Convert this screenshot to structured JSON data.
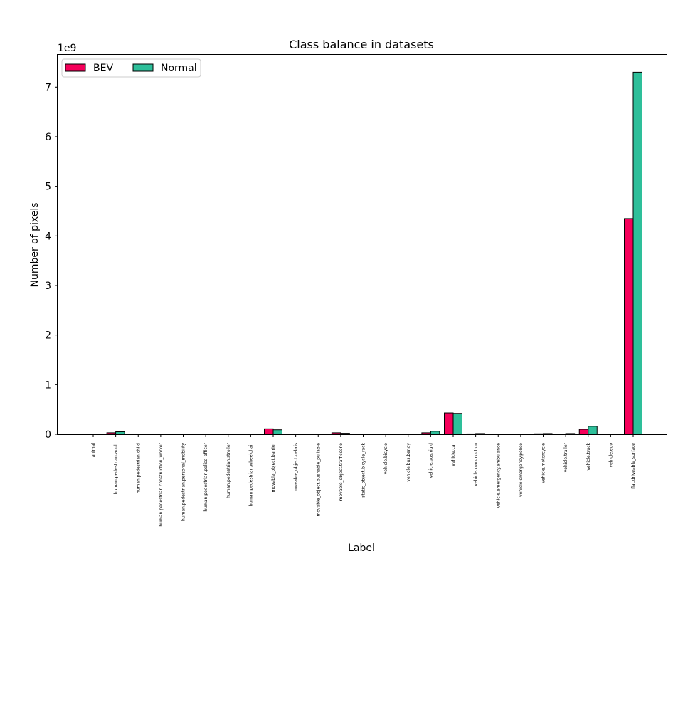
{
  "chart_data": {
    "type": "bar",
    "title": "Class balance in datasets",
    "xlabel": "Label",
    "ylabel": "Number of pixels",
    "y_scale_note": "1e9",
    "ylim": [
      0,
      7.65
    ],
    "yticks": [
      0,
      1,
      2,
      3,
      4,
      5,
      6,
      7
    ],
    "grid": false,
    "legend_position": "top-left",
    "categories": [
      "animal",
      "human.pedestrian.adult",
      "human.pedestrian.child",
      "human.pedestrian.construction_worker",
      "human.pedestrian.personal_mobility",
      "human.pedestrian.police_officer",
      "human.pedestrian.stroller",
      "human.pedestrian.wheelchair",
      "movable_object.barrier",
      "movable_object.debris",
      "movable_object.pushable_pullable",
      "movable_object.trafficcone",
      "static_object.bicycle_rack",
      "vehicle.bicycle",
      "vehicle.bus.bendy",
      "vehicle.bus.rigid",
      "vehicle.car",
      "vehicle.construction",
      "vehicle.emergency.ambulance",
      "vehicle.emergency.police",
      "vehicle.motorcycle",
      "vehicle.trailer",
      "vehicle.truck",
      "vehicle.ego",
      "flat.driveable_surface"
    ],
    "series": [
      {
        "name": "BEV",
        "color": "#f5005a",
        "values": [
          0.001,
          0.03,
          0.001,
          0.002,
          0.001,
          0.0005,
          0.0005,
          0.0005,
          0.11,
          0.003,
          0.005,
          0.03,
          0.002,
          0.004,
          0.003,
          0.03,
          0.43,
          0.008,
          0.0005,
          0.001,
          0.01,
          0.005,
          0.1,
          0.0,
          4.35
        ]
      },
      {
        "name": "Normal",
        "color": "#2ebf9a",
        "values": [
          0.001,
          0.05,
          0.002,
          0.003,
          0.001,
          0.001,
          0.001,
          0.001,
          0.09,
          0.004,
          0.006,
          0.02,
          0.003,
          0.005,
          0.004,
          0.06,
          0.42,
          0.015,
          0.001,
          0.001,
          0.015,
          0.015,
          0.16,
          0.0,
          7.3
        ]
      }
    ]
  }
}
